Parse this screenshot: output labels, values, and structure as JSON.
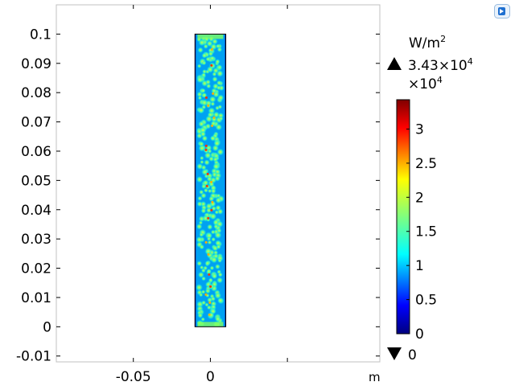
{
  "chart_data": {
    "type": "heatmap",
    "title": "",
    "xlabel": "m",
    "ylabel": "m",
    "xlim": [
      -0.1,
      0.11
    ],
    "ylim": [
      -0.012,
      0.11
    ],
    "x_ticks": [
      {
        "value": -0.05,
        "label": "-0.05"
      },
      {
        "value": 0,
        "label": "0"
      },
      {
        "value": 0.05,
        "label": ""
      }
    ],
    "y_ticks": [
      {
        "value": 0.1,
        "label": "0.1"
      },
      {
        "value": 0.09,
        "label": "0.09"
      },
      {
        "value": 0.08,
        "label": "0.08"
      },
      {
        "value": 0.07,
        "label": "0.07"
      },
      {
        "value": 0.06,
        "label": "0.06"
      },
      {
        "value": 0.05,
        "label": "0.05"
      },
      {
        "value": 0.04,
        "label": "0.04"
      },
      {
        "value": 0.03,
        "label": "0.03"
      },
      {
        "value": 0.02,
        "label": "0.02"
      },
      {
        "value": 0.01,
        "label": "0.01"
      },
      {
        "value": 0,
        "label": "0"
      },
      {
        "value": -0.01,
        "label": "-0.01"
      }
    ],
    "domain": {
      "x": [
        -0.01,
        0.01
      ],
      "y": [
        0,
        0.1
      ]
    },
    "colorbar": {
      "unit_base": "W/m",
      "unit_exp": "2",
      "max_label": "3.43×10",
      "max_exp": "4",
      "scale_label": "×10",
      "scale_exp": "4",
      "min_label": "0",
      "range": [
        0,
        3.43
      ],
      "ticks": [
        {
          "value": 3,
          "label": "3"
        },
        {
          "value": 2.5,
          "label": "2.5"
        },
        {
          "value": 2,
          "label": "2"
        },
        {
          "value": 1.5,
          "label": "1.5"
        },
        {
          "value": 1,
          "label": "1"
        },
        {
          "value": 0.5,
          "label": "0.5"
        },
        {
          "value": 0,
          "label": "0"
        }
      ]
    },
    "grid": false,
    "colormap": "rainbow",
    "colors": {
      "low": "#00007f",
      "high": "#7f0000",
      "frame": "#c0c0c0"
    }
  },
  "app": {
    "logo_icon": "comsol-logo-icon"
  }
}
